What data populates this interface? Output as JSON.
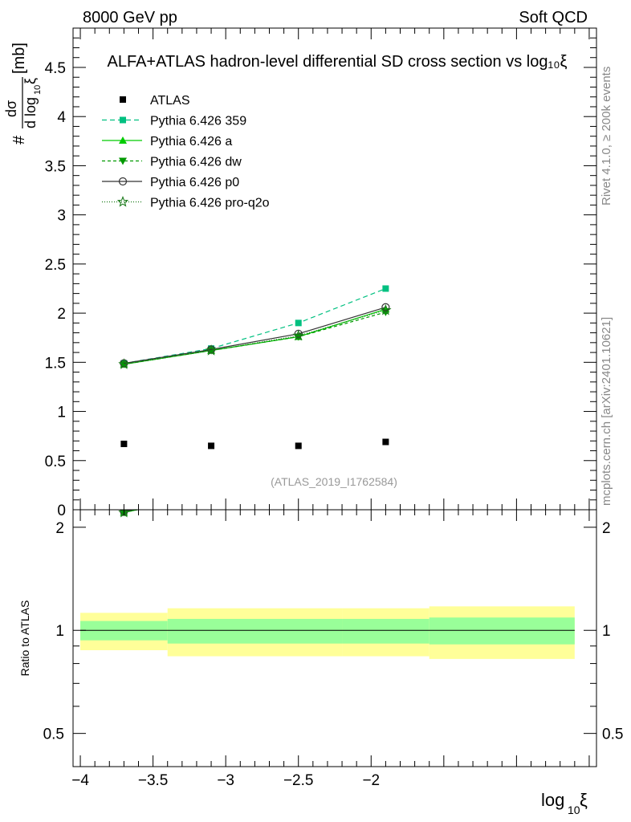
{
  "header": {
    "energy_label": "8000 GeV pp",
    "category_label": "Soft QCD"
  },
  "side_labels": {
    "rivet": "Rivet 4.1.0, ≥ 200k events",
    "mcplots": "mcplots.cern.ch [arXiv:2401.10621]"
  },
  "chart_data": {
    "type": "line",
    "title": "ALFA+ATLAS hadron-level differential SD cross section vs log₁₀ξ",
    "analysis_id": "(ATLAS_2019_I1762584)",
    "ylabel_prefix": "#",
    "ylabel_num": "dσ",
    "ylabel_den": "d log",
    "ylabel_den_sub": "10",
    "ylabel_den_tail": "ξ",
    "ylabel_unit": "[mb]",
    "xlabel": "log",
    "xlabel_sub": "10",
    "xlabel_tail": "ξ",
    "ratio_ylabel": "Ratio to ATLAS",
    "xlim": [
      -4.05,
      -0.45
    ],
    "ylim": [
      0,
      4.9
    ],
    "ratio_ylim": [
      0.4,
      2.25
    ],
    "x_ticks": [
      -4,
      -3.5,
      -3,
      -2.5,
      -2
    ],
    "x_tick_labels": [
      "−4",
      "−3.5",
      "−3",
      "−2.5",
      "−2"
    ],
    "y_ticks": [
      0,
      0.5,
      1,
      1.5,
      2,
      2.5,
      3,
      3.5,
      4,
      4.5
    ],
    "y_tick_labels": [
      "0",
      "0.5",
      "1",
      "1.5",
      "2",
      "2.5",
      "3",
      "3.5",
      "4",
      "4.5"
    ],
    "ratio_ticks": [
      0.5,
      1,
      2
    ],
    "ratio_tick_labels": [
      "0.5",
      "1",
      "2"
    ],
    "bin_edges": [
      -4.0,
      -3.4,
      -2.2,
      -1.6,
      -0.6
    ],
    "x": [
      -3.7,
      -3.1,
      -2.5,
      -1.9
    ],
    "data": {
      "name": "ATLAS",
      "values": [
        0.67,
        0.65,
        0.65,
        0.69
      ],
      "band_inner": [
        [
          0.935,
          1.065
        ],
        [
          0.915,
          1.08
        ],
        [
          0.915,
          1.08
        ],
        [
          0.91,
          1.09
        ]
      ],
      "band_outer": [
        [
          0.875,
          1.125
        ],
        [
          0.84,
          1.16
        ],
        [
          0.84,
          1.16
        ],
        [
          0.825,
          1.175
        ]
      ]
    },
    "series": [
      {
        "name": "Pythia 6.426 359",
        "values": [
          1.49,
          1.64,
          1.9,
          2.25
        ],
        "color": "#00c080",
        "dash": "6,4",
        "marker": "square"
      },
      {
        "name": "Pythia 6.426 a",
        "values": [
          1.48,
          1.62,
          1.76,
          2.04
        ],
        "color": "#00cc00",
        "dash": "",
        "marker": "triangle-up"
      },
      {
        "name": "Pythia 6.426 dw",
        "values": [
          1.48,
          1.62,
          1.76,
          2.01
        ],
        "color": "#009900",
        "dash": "4,3",
        "marker": "triangle-down"
      },
      {
        "name": "Pythia 6.426 p0",
        "values": [
          1.49,
          1.63,
          1.79,
          2.06
        ],
        "color": "#333333",
        "dash": "",
        "marker": "circle-open"
      },
      {
        "name": "Pythia 6.426 pro-q2o",
        "values": [
          1.48,
          1.62,
          1.77,
          2.03
        ],
        "color": "#1a7a1a",
        "dash": "1,2",
        "marker": "star-open"
      }
    ],
    "colors": {
      "band_inner": "#99ff99",
      "band_outer": "#ffff99",
      "data": "#000000"
    }
  }
}
